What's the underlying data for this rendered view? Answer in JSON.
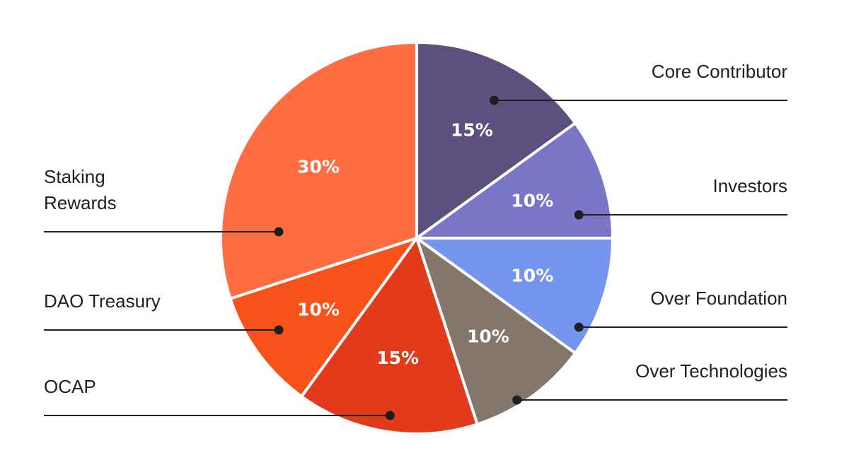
{
  "chart_data": {
    "type": "pie",
    "start_angle_deg": 0,
    "direction": "clockwise",
    "slices": [
      {
        "label": "Core Contributor",
        "value": 15,
        "value_label": "15%",
        "color": "#5B507E"
      },
      {
        "label": "Investors",
        "value": 10,
        "value_label": "10%",
        "color": "#7A75C7"
      },
      {
        "label": "Over Foundation",
        "value": 10,
        "value_label": "10%",
        "color": "#7595EE"
      },
      {
        "label": "Over Technologies",
        "value": 10,
        "value_label": "10%",
        "color": "#85766A"
      },
      {
        "label": "OCAP",
        "value": 15,
        "value_label": "15%",
        "color": "#E23A1A"
      },
      {
        "label": "DAO Treasury",
        "value": 10,
        "value_label": "10%",
        "color": "#F6521A"
      },
      {
        "label": "Staking Rewards",
        "value": 30,
        "value_label": "30%",
        "color": "#FE6C42"
      }
    ],
    "label_placement": "callout lines to left and right edges",
    "legend": "none"
  }
}
